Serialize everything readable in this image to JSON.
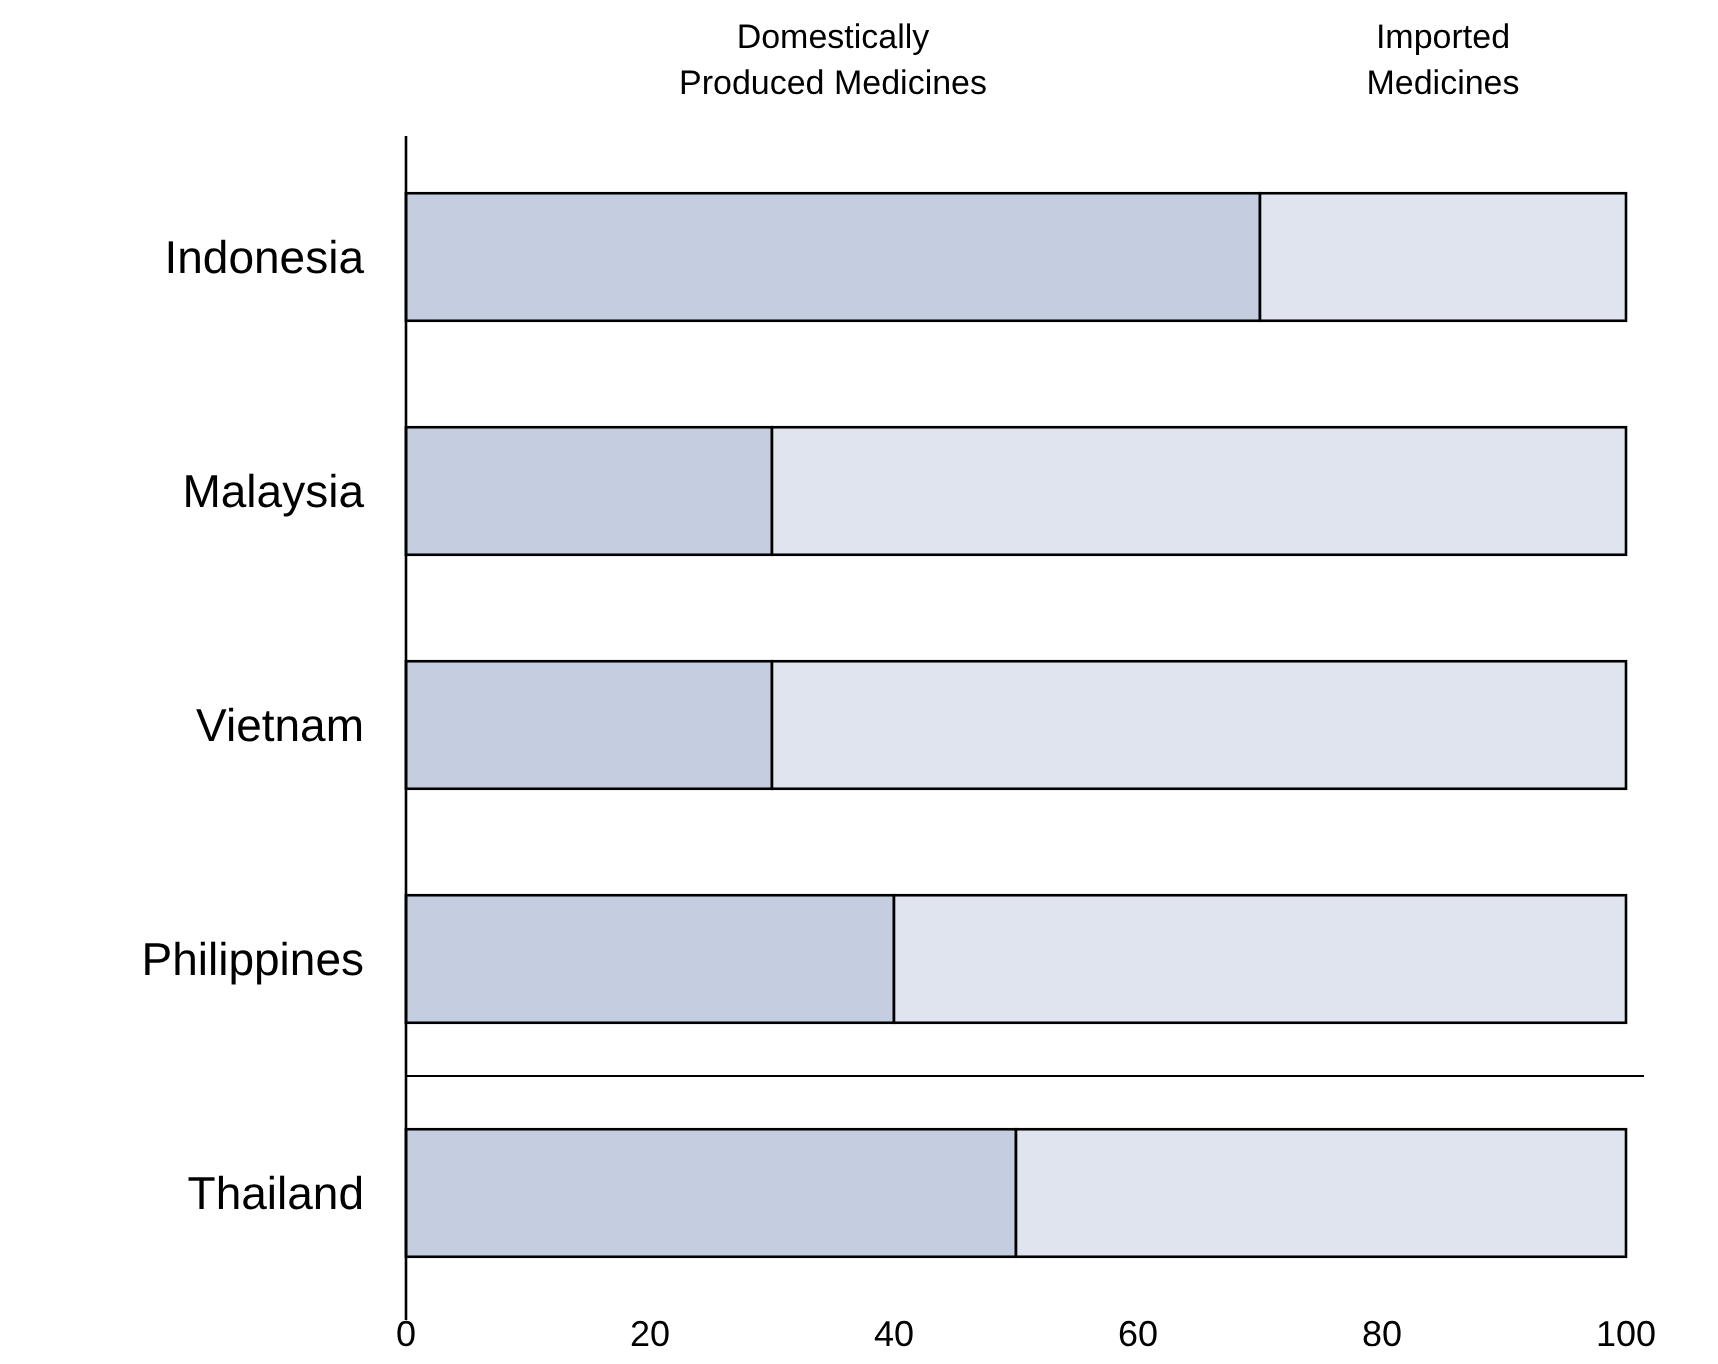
{
  "chart_data": {
    "type": "bar",
    "orientation": "horizontal",
    "stacked": true,
    "categories": [
      "Indonesia",
      "Malaysia",
      "Vietnam",
      "Philippines",
      "Thailand"
    ],
    "series": [
      {
        "name": "Domestically Produced Medicines",
        "color": "#c5cee0",
        "values": [
          70,
          30,
          30,
          40,
          50
        ]
      },
      {
        "name": "Imported Medicines",
        "color": "#dfe4ef",
        "values": [
          30,
          70,
          70,
          60,
          50
        ]
      }
    ],
    "xlim": [
      0,
      100
    ],
    "xticks": [
      0,
      20,
      40,
      60,
      80,
      100
    ],
    "grid": false,
    "legend": "top"
  }
}
